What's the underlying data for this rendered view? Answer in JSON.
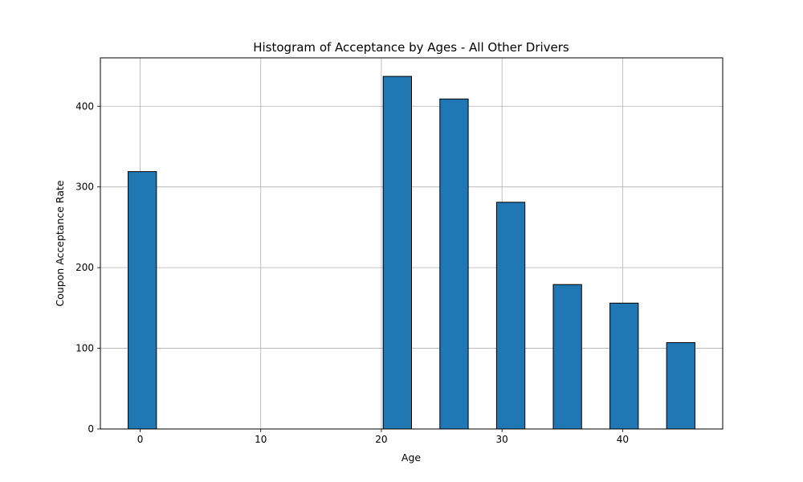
{
  "chart_data": {
    "type": "bar",
    "title": "Histogram of Acceptance by Ages - All Other Drivers",
    "xlabel": "Age",
    "ylabel": "Coupon Acceptance Rate",
    "xlim": [
      -3.3,
      48.3
    ],
    "ylim": [
      0,
      460
    ],
    "xticks": [
      0,
      10,
      20,
      30,
      40
    ],
    "yticks": [
      0,
      100,
      200,
      300,
      400
    ],
    "grid": true,
    "bar_color": "#1f77b4",
    "edge_color": "#000000",
    "bins": [
      {
        "x0": -1.0,
        "x1": 1.35,
        "value": 319
      },
      {
        "x0": 20.15,
        "x1": 22.5,
        "value": 437
      },
      {
        "x0": 24.85,
        "x1": 27.2,
        "value": 409
      },
      {
        "x0": 29.55,
        "x1": 31.9,
        "value": 281
      },
      {
        "x0": 34.25,
        "x1": 36.6,
        "value": 179
      },
      {
        "x0": 38.95,
        "x1": 41.3,
        "value": 156
      },
      {
        "x0": 43.65,
        "x1": 46.0,
        "value": 107
      }
    ]
  }
}
